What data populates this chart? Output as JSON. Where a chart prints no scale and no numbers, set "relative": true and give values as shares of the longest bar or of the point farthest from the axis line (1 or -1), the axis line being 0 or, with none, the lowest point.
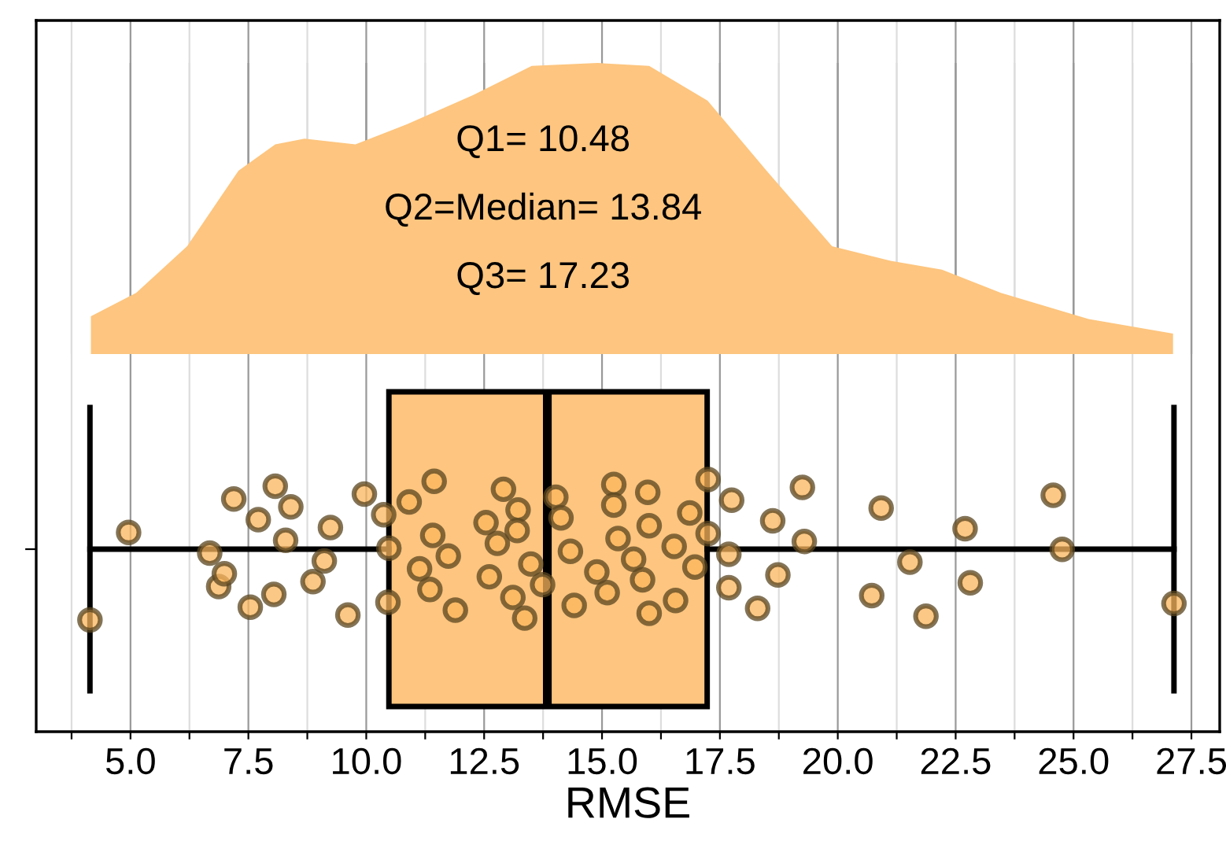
{
  "chart_data": [
    {
      "type": "area",
      "relative": true,
      "tick_labels": false,
      "grid": "x",
      "xlim": [
        3.0,
        28.1
      ],
      "color": "#fdc57f",
      "xticks": [
        {
          "value": 3.75,
          "label": null
        },
        {
          "value": 5.0,
          "label": null
        },
        {
          "value": 6.25,
          "label": null
        },
        {
          "value": 7.5,
          "label": null
        },
        {
          "value": 8.75,
          "label": null
        },
        {
          "value": 10.0,
          "label": null
        },
        {
          "value": 11.25,
          "label": null
        },
        {
          "value": 12.5,
          "label": null
        },
        {
          "value": 13.75,
          "label": null
        },
        {
          "value": 15.0,
          "label": null
        },
        {
          "value": 16.25,
          "label": null
        },
        {
          "value": 17.5,
          "label": null
        },
        {
          "value": 18.75,
          "label": null
        },
        {
          "value": 20.0,
          "label": null
        },
        {
          "value": 21.25,
          "label": null
        },
        {
          "value": 22.5,
          "label": null
        },
        {
          "value": 23.75,
          "label": null
        },
        {
          "value": 25.0,
          "label": null
        },
        {
          "value": 26.25,
          "label": null
        },
        {
          "value": 27.5,
          "label": null
        }
      ],
      "x": [
        4.16,
        5.12,
        6.2,
        7.29,
        8.07,
        8.69,
        9.77,
        10.87,
        12.27,
        13.51,
        14.91,
        16.0,
        17.24,
        18.49,
        19.88,
        21.12,
        22.21,
        23.46,
        25.32,
        27.11
      ],
      "values": [
        0.13,
        0.21,
        0.37,
        0.63,
        0.72,
        0.74,
        0.72,
        0.79,
        0.89,
        0.99,
        1.0,
        0.99,
        0.87,
        0.63,
        0.37,
        0.32,
        0.29,
        0.21,
        0.12,
        0.07
      ],
      "annotations": [
        "Q1= 10.48",
        "Q2=Median= 13.84",
        "Q3= 17.23"
      ]
    },
    {
      "type": "box",
      "orientation": "horizontal",
      "categories": [
        null
      ],
      "tick_labels": "x",
      "grid": "x",
      "xlabel": "RMSE",
      "xlim": [
        3.0,
        28.1
      ],
      "xticks": [
        {
          "value": 3.75,
          "label": null
        },
        {
          "value": 5.0,
          "label": "5.0"
        },
        {
          "value": 6.25,
          "label": null
        },
        {
          "value": 7.5,
          "label": "7.5"
        },
        {
          "value": 8.75,
          "label": null
        },
        {
          "value": 10.0,
          "label": "10.0"
        },
        {
          "value": 11.25,
          "label": null
        },
        {
          "value": 12.5,
          "label": "12.5"
        },
        {
          "value": 13.75,
          "label": null
        },
        {
          "value": 15.0,
          "label": "15.0"
        },
        {
          "value": 16.25,
          "label": null
        },
        {
          "value": 17.5,
          "label": "17.5"
        },
        {
          "value": 18.75,
          "label": null
        },
        {
          "value": 20.0,
          "label": "20.0"
        },
        {
          "value": 21.25,
          "label": null
        },
        {
          "value": 22.5,
          "label": "22.5"
        },
        {
          "value": 23.75,
          "label": null
        },
        {
          "value": 25.0,
          "label": "25.0"
        },
        {
          "value": 26.25,
          "label": null
        },
        {
          "value": 27.5,
          "label": "27.5"
        }
      ],
      "series": [
        {
          "type": "box",
          "color": "#fdc57f",
          "boxes": [
            {
              "low": 4.14,
              "q1": 10.48,
              "median": 13.84,
              "q3": 17.23,
              "high": 27.13
            }
          ]
        },
        {
          "type": "scatter",
          "color": "#fbb55c",
          "x": [
            null,
            null,
            null,
            null,
            null,
            null,
            null,
            null,
            null,
            null,
            null,
            null,
            null,
            null,
            null,
            null,
            null,
            null,
            null,
            null,
            null,
            null,
            null,
            null,
            null,
            null,
            null,
            null,
            null,
            null,
            null,
            null,
            null,
            null,
            null,
            null,
            null,
            null,
            null,
            null,
            null,
            null,
            null,
            null,
            null,
            null,
            null,
            null,
            null,
            null,
            null,
            null,
            null,
            null,
            null,
            null,
            null,
            null,
            null,
            null,
            null,
            null,
            null,
            null,
            null,
            null,
            null,
            null,
            null,
            null,
            null,
            null,
            null,
            null
          ],
          "values": [
            4.14,
            4.96,
            6.87,
            7.19,
            6.68,
            7.54,
            7.71,
            6.99,
            8.07,
            8.29,
            8.04,
            8.4,
            9.11,
            9.61,
            9.24,
            8.87,
            9.96,
            10.48,
            10.46,
            10.37,
            11.13,
            11.44,
            11.41,
            11.35,
            10.91,
            11.74,
            11.89,
            12.54,
            12.61,
            12.91,
            12.78,
            13.11,
            13.22,
            13.49,
            13.36,
            13.2,
            13.74,
            14.02,
            14.33,
            14.41,
            14.13,
            14.89,
            15.25,
            15.34,
            15.11,
            15.25,
            15.67,
            16.0,
            16.0,
            15.86,
            15.97,
            16.53,
            16.56,
            16.86,
            16.97,
            17.25,
            17.25,
            17.69,
            17.75,
            17.69,
            18.3,
            18.62,
            18.73,
            19.25,
            19.29,
            20.72,
            20.92,
            21.53,
            21.87,
            22.7,
            22.81,
            24.57,
            24.76,
            27.13
          ]
        }
      ]
    }
  ]
}
